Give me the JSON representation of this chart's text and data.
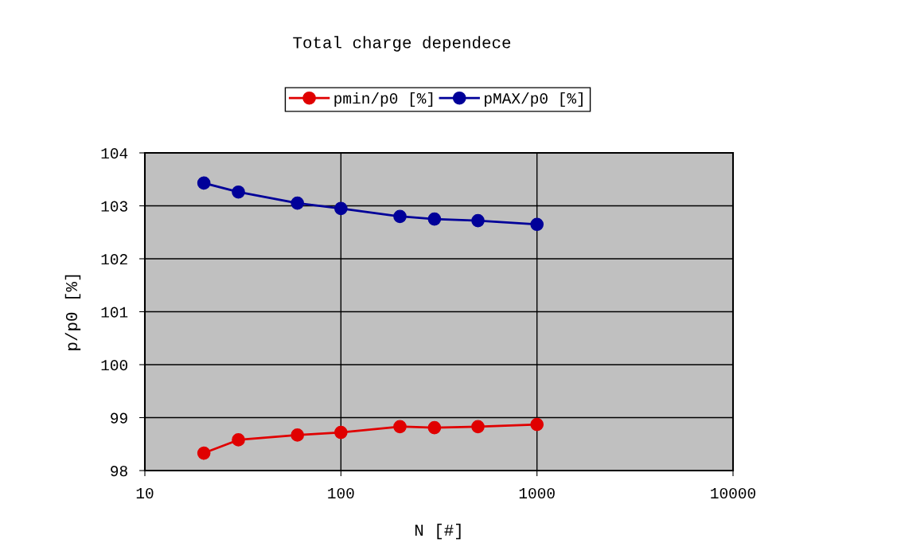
{
  "chart_data": {
    "type": "line",
    "title": "Total charge dependece",
    "xlabel": "N [#]",
    "ylabel": "p/p0 [%]",
    "x": [
      20,
      30,
      60,
      100,
      200,
      300,
      500,
      1000
    ],
    "series": [
      {
        "name": "pmin/p0 [%]",
        "color": "#e00000",
        "values": [
          98.33,
          98.58,
          98.67,
          98.72,
          98.83,
          98.81,
          98.83,
          98.87
        ]
      },
      {
        "name": "pMAX/p0 [%]",
        "color": "#000099",
        "values": [
          103.43,
          103.26,
          103.05,
          102.95,
          102.8,
          102.75,
          102.72,
          102.65
        ]
      }
    ],
    "log": "x",
    "xlim": [
      10,
      10000
    ],
    "xticks": [
      10,
      100,
      1000,
      10000
    ],
    "ylim": [
      98,
      104
    ],
    "yticks": [
      98,
      99,
      100,
      101,
      102,
      103,
      104
    ],
    "grid": true,
    "legend": "top",
    "marker": "circle",
    "line_style": "solid"
  }
}
